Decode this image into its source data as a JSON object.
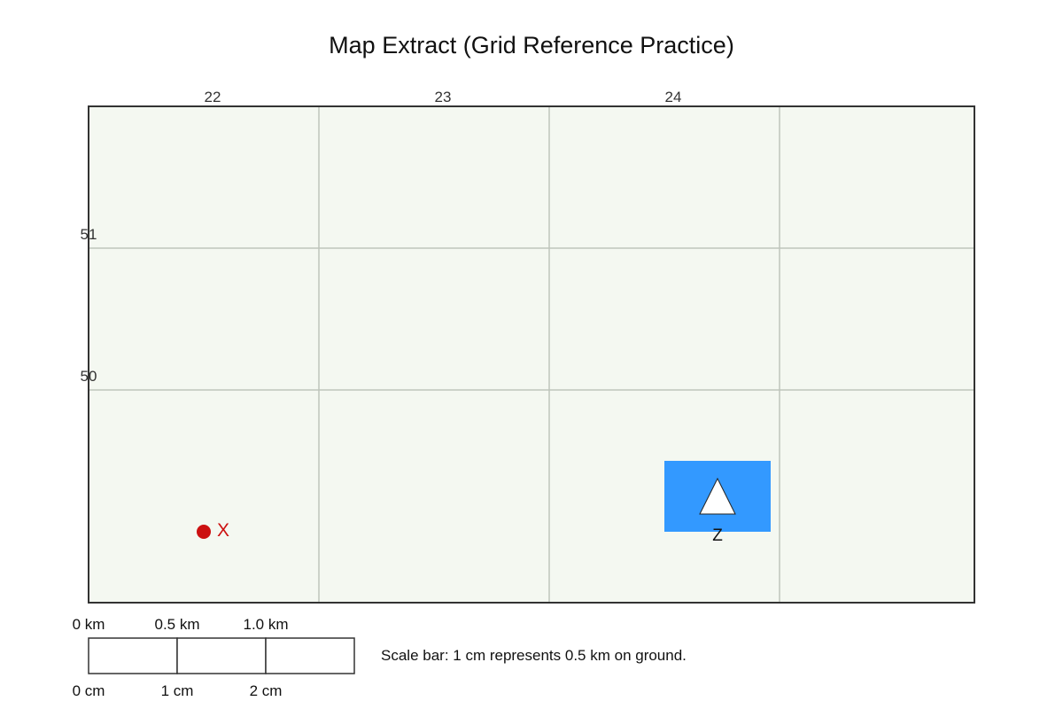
{
  "title": "Map Extract (Grid Reference Practice)",
  "colors": {
    "map_background": "#f4f8f1",
    "grid_line": "#bfc5bc",
    "map_border": "#333333",
    "marker_x": "#cc1111",
    "feature_z_fill": "#3399ff",
    "feature_z_symbol": "#ffffff"
  },
  "grid": {
    "eastings": [
      "22",
      "23",
      "24"
    ],
    "northings": [
      "51",
      "50"
    ]
  },
  "markers": {
    "x": {
      "label": "X",
      "icon": "red-dot-icon"
    },
    "z": {
      "label": "Z",
      "icon": "triangle-icon"
    }
  },
  "scale_bar": {
    "km_labels": [
      "0 km",
      "0.5 km",
      "1.0 km"
    ],
    "cm_labels": [
      "0 cm",
      "1 cm",
      "2 cm"
    ],
    "caption": "Scale bar: 1 cm represents 0.5 km on ground."
  }
}
